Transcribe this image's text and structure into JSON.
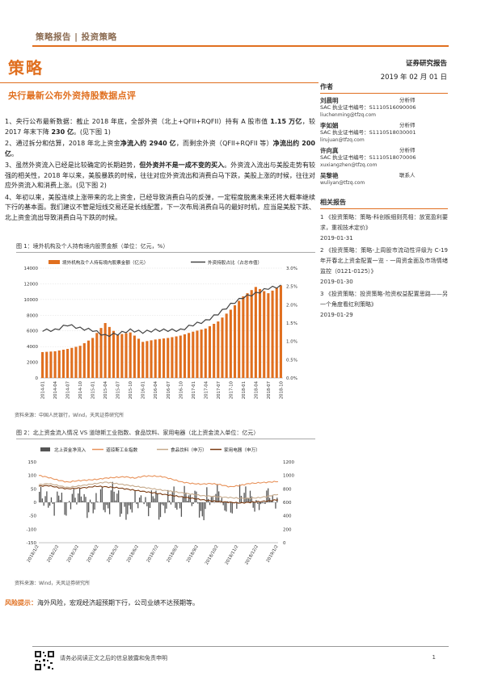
{
  "header": {
    "breadcrumb": "策略报告 | 投资策略"
  },
  "hero": {
    "title": "策略",
    "report_type": "证券研究报告",
    "date": "2019 年 02 月 01 日"
  },
  "article": {
    "title": "央行最新公布外资持股数据点评",
    "paragraphs": [
      {
        "parts": [
          {
            "t": "1、央行公布最新数据：截止 2018 年底，全部外资（北上+QFII+RQFII）持有 A 股市值 "
          },
          {
            "t": "1.15 万亿",
            "b": true
          },
          {
            "t": "，较 2017 年末下降 "
          },
          {
            "t": "230 亿",
            "b": true
          },
          {
            "t": "。(见下图 1)"
          }
        ]
      },
      {
        "parts": [
          {
            "t": "2、通过拆分和估算，2018 年北上资金"
          },
          {
            "t": "净流入约 2940 亿",
            "b": true
          },
          {
            "t": "，而剩余外资（QFII+RQFII 等）"
          },
          {
            "t": "净流出约 200 亿",
            "b": true
          },
          {
            "t": "。"
          }
        ]
      },
      {
        "parts": [
          {
            "t": "3、虽然外资流入已经是比较确定的长期趋势，"
          },
          {
            "t": "但外资并不是一成不变的买入",
            "b": true
          },
          {
            "t": "。外资流入流出与美股走势有较强的相关性，2018 年以来，美股暴跌的时候，往往对应外资流出和消费白马下跌，美股上涨的时候，往往对应外资流入和消费上涨。(见下图 2)"
          }
        ]
      },
      {
        "parts": [
          {
            "t": "4、年初以来，美股连续上涨带来的北上资金，已经导致消费白马的反弹，一定程度脱离未来还将大概率继续下行的基本面。我们建议不管是短线交易还是长线配置，下一次布局消费白马的最好时机，应当是美股下跌、北上资金流出导致消费白马下跌的时候。"
          }
        ]
      }
    ],
    "risk_label": "风险提示：",
    "risk_text": "海外风险，宏观经济超预期下行，公司业绩不达预期等。"
  },
  "fig1": {
    "title": "图 1：境外机构及个人持有境内股票金额（单位：亿元，%）",
    "source": "资料来源：中国人民银行，Wind，天风证券研究所"
  },
  "fig2": {
    "title": "图 2：北上资金流入情况 VS 道琼斯工业指数、食品饮料、家用电器（北上资金流入单位：亿元）",
    "source": "资料来源：Wind，天风证券研究所"
  },
  "chart_data": [
    {
      "type": "bar",
      "legend": [
        {
          "name": "境外机构及个人持有境内股票金额（亿元）",
          "color": "#e06f1f"
        },
        {
          "name": "外资持股占比（占总市值）",
          "color": "#444444"
        }
      ],
      "categories": [
        "2014-01",
        "2014-04",
        "2014-07",
        "2014-10",
        "2015-01",
        "2015-04",
        "2015-07",
        "2015-10",
        "2016-01",
        "2016-04",
        "2016-07",
        "2016-10",
        "2017-01",
        "2017-04",
        "2017-07",
        "2017-10",
        "2018-01",
        "2018-04",
        "2018-07",
        "2018-10"
      ],
      "series": [
        {
          "name": "境外机构及个人持有境内股票金额（亿元）",
          "axis": "left",
          "values": [
            3300,
            3400,
            3700,
            4100,
            5100,
            7000,
            5500,
            5800,
            4600,
            4900,
            5100,
            5400,
            5900,
            6300,
            7200,
            8700,
            10400,
            11600,
            10800,
            11800
          ]
        },
        {
          "name": "外资持股占比（占总市值）",
          "axis": "right",
          "values": [
            1.3,
            1.3,
            1.45,
            1.35,
            1.3,
            1.15,
            1.2,
            1.3,
            1.25,
            1.3,
            1.3,
            1.3,
            1.45,
            1.55,
            1.75,
            2.0,
            2.2,
            2.3,
            2.45,
            2.5
          ]
        }
      ],
      "ylim_left": [
        0,
        14000
      ],
      "yticks_left": [
        "0",
        "2000",
        "4000",
        "6000",
        "8000",
        "10000",
        "12000",
        "14000"
      ],
      "ylim_right": [
        0,
        3.0
      ],
      "yticks_right": [
        "0.0%",
        "0.5%",
        "1.0%",
        "1.5%",
        "2.0%",
        "2.5%",
        "3.0%"
      ]
    },
    {
      "type": "line",
      "legend": [
        {
          "name": "北上资金净流入",
          "color": "#555555",
          "kind": "bar"
        },
        {
          "name": "道琼斯工业指数",
          "color": "#e8925a",
          "kind": "line"
        },
        {
          "name": "食品饮料（申万）",
          "color": "#c6a98a",
          "kind": "line"
        },
        {
          "name": "家用电器（申万）",
          "color": "#7a3a10",
          "kind": "line"
        }
      ],
      "categories": [
        "2018/1/2",
        "2018/2/2",
        "2018/3/2",
        "2018/4/2",
        "2018/5/2",
        "2018/6/2",
        "2018/7/2",
        "2018/8/2",
        "2018/9/2",
        "2018/10/2",
        "2018/11/2",
        "2018/12/2",
        "2019/1/2"
      ],
      "north_flow": [
        40,
        -20,
        30,
        -30,
        50,
        30,
        -40,
        40,
        -30,
        60,
        -60,
        -40,
        20,
        -20,
        35,
        -50,
        45,
        -30,
        40,
        20,
        -70,
        30,
        50,
        -40,
        -20,
        60,
        30,
        -30,
        40,
        20
      ],
      "dji": [
        1000,
        970,
        930,
        900,
        920,
        930,
        940,
        960,
        970,
        980,
        960,
        990,
        990,
        980,
        940,
        900,
        880,
        870,
        880,
        860,
        830,
        850,
        880,
        890,
        900,
        910
      ],
      "food": [
        860,
        880,
        850,
        820,
        840,
        860,
        880,
        900,
        880,
        860,
        840,
        820,
        800,
        780,
        760,
        740,
        720,
        700,
        690,
        680,
        670,
        660,
        660,
        670,
        690,
        720
      ],
      "home": [
        840,
        850,
        820,
        800,
        810,
        820,
        840,
        830,
        820,
        800,
        780,
        760,
        740,
        720,
        700,
        680,
        660,
        640,
        620,
        610,
        600,
        590,
        600,
        610,
        620,
        640
      ],
      "ylim_left": [
        -150,
        150
      ],
      "yticks_left": [
        "150",
        "100",
        "50",
        "0",
        "-50",
        "-100",
        "-150"
      ],
      "ylim_right": [
        0,
        1200
      ],
      "yticks_right": [
        "1200",
        "1000",
        "800",
        "600",
        "400",
        "200",
        "0"
      ]
    }
  ],
  "sidebar": {
    "authors_head": "作者",
    "analysts": [
      {
        "name": "刘晨明",
        "role": "分析师",
        "cert": "SAC 执业证书编号：S1110516090006",
        "email": "liuchenming@tfzq.com"
      },
      {
        "name": "李如娟",
        "role": "分析师",
        "cert": "SAC 执业证书编号：S1110518030001",
        "email": "lirujuan@tfzq.com"
      },
      {
        "name": "许向真",
        "role": "分析师",
        "cert": "SAC 执业证书编号：S1110518070006",
        "email": "xuxiangzhen@tfzq.com"
      },
      {
        "name": "吴黎艳",
        "role": "联系人",
        "cert": "",
        "email": "wuliyan@tfzq.com"
      }
    ],
    "related_head": "相关报告",
    "related": [
      {
        "text": "1 《投资策略：策略-科创板细则亮相：放宽盈利要求，重视技术定价》",
        "date": "2019-01-31"
      },
      {
        "text": "2 《投资策略：策略-上周股市流动性评级为 C-19 年开春北上资金配置一览 - 一周资金面及市场情绪监控（0121-0125）》",
        "date": "2019-01-30"
      },
      {
        "text": "3 《投资策略：投资策略-险资权益配置思路——另一个角度看红利策略》",
        "date": "2019-01-29"
      }
    ]
  },
  "footer": {
    "disclaimer": "请务必阅读正文之后的信息披露和免责申明",
    "page": "1"
  }
}
